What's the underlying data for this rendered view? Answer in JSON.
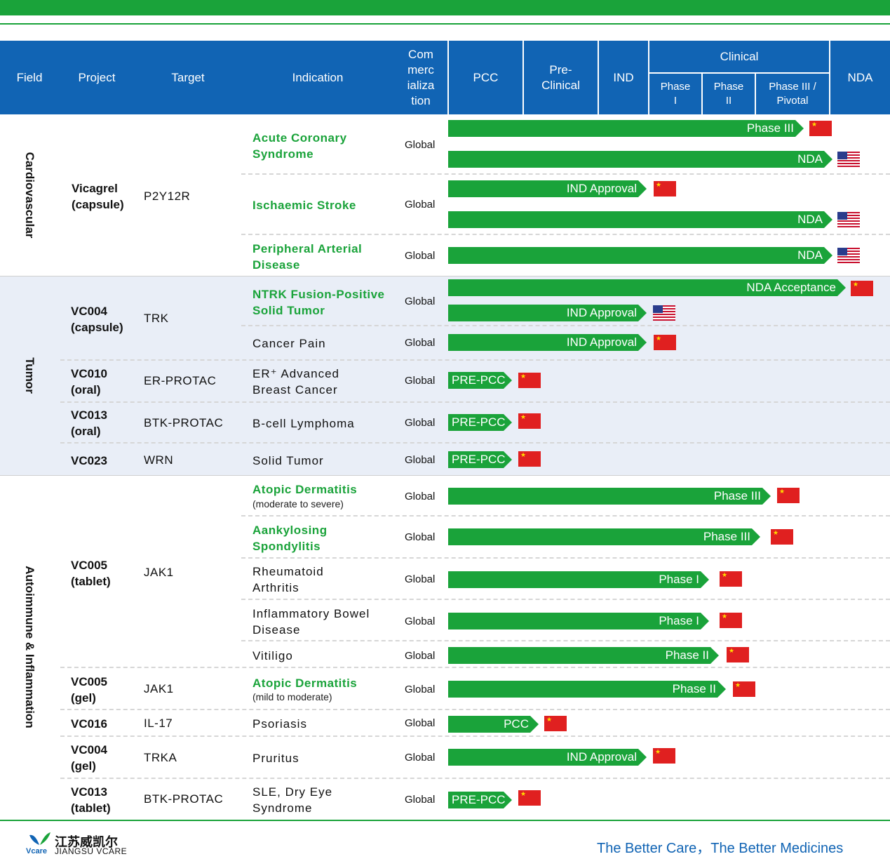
{
  "header": {
    "field": "Field",
    "project": "Project",
    "target": "Target",
    "indication": "Indication",
    "commercialization": "Com\nmerc\nializa\ntion",
    "pcc": "PCC",
    "preclinical": "Pre-\nClinical",
    "ind": "IND",
    "clinical": "Clinical",
    "phase1": "Phase\nI",
    "phase2": "Phase\nII",
    "phase3": "Phase III /\nPivotal",
    "nda": "NDA"
  },
  "fields": {
    "cardiovascular": "Cardiovascular",
    "tumor": "Tumor",
    "autoimmune": "Autoimmune & Inflammation"
  },
  "rows": [
    {
      "project": "Vicagrel\n(capsule)",
      "target": "P2Y12R",
      "indication": "Acute Coronary\nSyndrome",
      "region": "Global",
      "bars": [
        {
          "label": "Phase III",
          "flag": "CN"
        },
        {
          "label": "NDA",
          "flag": "US"
        }
      ]
    },
    {
      "indication": "Ischaemic Stroke",
      "region": "Global",
      "bars": [
        {
          "label": "IND Approval",
          "flag": "CN"
        },
        {
          "label": "NDA",
          "flag": "US"
        }
      ]
    },
    {
      "indication": "Peripheral Arterial\nDisease",
      "region": "Global",
      "bars": [
        {
          "label": "NDA",
          "flag": "US"
        }
      ]
    },
    {
      "project": "VC004\n(capsule)",
      "target": "TRK",
      "indication": "NTRK Fusion-Positive\nSolid Tumor",
      "region": "Global",
      "bars": [
        {
          "label": "NDA Acceptance",
          "flag": "CN"
        },
        {
          "label": "IND Approval",
          "flag": "US"
        }
      ]
    },
    {
      "indication": "Cancer Pain",
      "region": "Global",
      "bars": [
        {
          "label": "IND Approval",
          "flag": "CN"
        }
      ]
    },
    {
      "project": "VC010\n(oral)",
      "target": "ER-PROTAC",
      "indication": "ER⁺ Advanced\nBreast Cancer",
      "region": "Global",
      "bars": [
        {
          "label": "PRE-PCC",
          "flag": "CN"
        }
      ]
    },
    {
      "project": "VC013\n(oral)",
      "target": "BTK-PROTAC",
      "indication": "B-cell Lymphoma",
      "region": "Global",
      "bars": [
        {
          "label": "PRE-PCC",
          "flag": "CN"
        }
      ]
    },
    {
      "project": "VC023",
      "target": "WRN",
      "indication": "Solid Tumor",
      "region": "Global",
      "bars": [
        {
          "label": "PRE-PCC",
          "flag": "CN"
        }
      ]
    },
    {
      "project": "VC005\n(tablet)",
      "target": "JAK1",
      "indication": "Atopic Dermatitis",
      "indication_sub": "(moderate  to severe)",
      "region": "Global",
      "bars": [
        {
          "label": "Phase III",
          "flag": "CN"
        }
      ]
    },
    {
      "indication": "Aankylosing\nSpondylitis",
      "region": "Global",
      "bars": [
        {
          "label": "Phase III",
          "flag": "CN"
        }
      ]
    },
    {
      "indication": "Rheumatoid\nArthritis",
      "region": "Global",
      "bars": [
        {
          "label": "Phase I",
          "flag": "CN"
        }
      ]
    },
    {
      "indication": "Inflammatory Bowel\nDisease",
      "region": "Global",
      "bars": [
        {
          "label": "Phase I",
          "flag": "CN"
        }
      ]
    },
    {
      "indication": "Vitiligo",
      "region": "Global",
      "bars": [
        {
          "label": "Phase II",
          "flag": "CN"
        }
      ]
    },
    {
      "project": "VC005\n(gel)",
      "target": "JAK1",
      "indication": "Atopic Dermatitis",
      "indication_sub": "(mild to moderate)",
      "region": "Global",
      "bars": [
        {
          "label": "Phase II",
          "flag": "CN"
        }
      ]
    },
    {
      "project": "VC016",
      "target": "IL-17",
      "indication": "Psoriasis",
      "region": "Global",
      "bars": [
        {
          "label": "PCC",
          "flag": "CN"
        }
      ]
    },
    {
      "project": "VC004\n(gel)",
      "target": "TRKA",
      "indication": "Pruritus",
      "region": "Global",
      "bars": [
        {
          "label": "IND Approval",
          "flag": "CN"
        }
      ]
    },
    {
      "project": "VC013\n(tablet)",
      "target": "BTK-PROTAC",
      "indication": "SLE, Dry Eye\nSyndrome",
      "region": "Global",
      "bars": [
        {
          "label": "PRE-PCC",
          "flag": "CN"
        }
      ]
    }
  ],
  "footer": {
    "logo_cn": "江苏威凯尔",
    "logo_en": "JIANGSU VCARE",
    "logo_mark": "Vcare",
    "slogan": "The Better Care，The Better Medicines"
  },
  "colors": {
    "green": "#1aa33a",
    "blue": "#1164b4",
    "band": "#e9eef7"
  }
}
